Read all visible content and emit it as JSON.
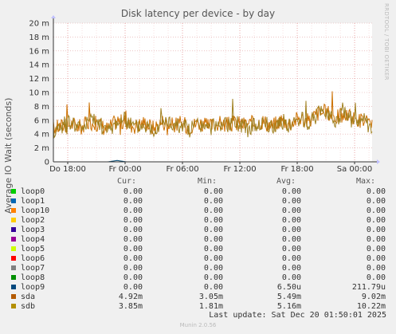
{
  "chart_data": {
    "type": "line",
    "title": "Disk latency per device - by day",
    "ylabel": "Average IO Wait (seconds)",
    "ylim": [
      0,
      0.02
    ],
    "y_ticks": [
      {
        "value": 0,
        "label": "0"
      },
      {
        "value": 0.002,
        "label": "2 m"
      },
      {
        "value": 0.004,
        "label": "4 m"
      },
      {
        "value": 0.006,
        "label": "6 m"
      },
      {
        "value": 0.008,
        "label": "8 m"
      },
      {
        "value": 0.01,
        "label": "10 m"
      },
      {
        "value": 0.012,
        "label": "12 m"
      },
      {
        "value": 0.014,
        "label": "14 m"
      },
      {
        "value": 0.016,
        "label": "16 m"
      },
      {
        "value": 0.018,
        "label": "18 m"
      },
      {
        "value": 0.02,
        "label": "20 m"
      }
    ],
    "x_range": [
      "Dec 19 16:30",
      "Dec 20 01:50"
    ],
    "x_ticks": [
      "Dec 19 18:00",
      "Dec 20 00:00",
      "Dec 20 06:00",
      "Dec 20 12:00",
      "Dec 20 18:00",
      "Dec 21 00:00"
    ],
    "x_tick_labels": [
      "Do 18:00",
      "Fr 00:00",
      "Fr 06:00",
      "Fr 12:00",
      "Fr 18:00",
      "Sa 00:00"
    ],
    "x_span_hours": 33.33,
    "x_start_offset_hours": -1.5,
    "grid": true,
    "series": [
      {
        "name": "sda",
        "color": "#cc7000",
        "values": [
          0.0049,
          0.0052,
          0.0055,
          0.005,
          0.0058,
          0.0054,
          0.0047,
          0.006,
          0.0055,
          0.0052,
          0.0057,
          0.0049,
          0.0058,
          0.0053,
          0.0055,
          0.0051,
          0.0057,
          0.005,
          0.0056,
          0.0053,
          0.0056,
          0.0054,
          0.0055,
          0.0059,
          0.0051,
          0.0061,
          0.0055,
          0.0064,
          0.0058,
          0.007,
          0.0072,
          0.0065,
          0.0068,
          0.0062,
          0.006,
          0.0049
        ]
      },
      {
        "name": "sdb",
        "color": "#a08020",
        "values": [
          0.0045,
          0.0053,
          0.0058,
          0.0048,
          0.0061,
          0.0056,
          0.0043,
          0.0059,
          0.006,
          0.005,
          0.0054,
          0.0047,
          0.006,
          0.0055,
          0.0053,
          0.0047,
          0.0055,
          0.0046,
          0.0058,
          0.0052,
          0.0057,
          0.005,
          0.0052,
          0.0058,
          0.0048,
          0.006,
          0.0052,
          0.0062,
          0.0055,
          0.0068,
          0.0074,
          0.006,
          0.007,
          0.0058,
          0.0063,
          0.0039
        ]
      },
      {
        "name": "loop9",
        "color": "#004a74",
        "values": [
          0,
          0,
          0,
          0,
          0,
          0,
          0,
          0.0002,
          0,
          0,
          0,
          0,
          0,
          0,
          0,
          0,
          0,
          0,
          0,
          0,
          0,
          0,
          0,
          0,
          0,
          0,
          0,
          0,
          0,
          0,
          0,
          0,
          0,
          0,
          0,
          0
        ]
      }
    ],
    "legend": {
      "headers": {
        "cur": "Cur:",
        "min": "Min:",
        "avg": "Avg:",
        "max": "Max:"
      },
      "rows": [
        {
          "name": "loop0",
          "color": "#00cc00",
          "cur": "0.00",
          "min": "0.00",
          "avg": "0.00",
          "max": "0.00"
        },
        {
          "name": "loop1",
          "color": "#0066b3",
          "cur": "0.00",
          "min": "0.00",
          "avg": "0.00",
          "max": "0.00"
        },
        {
          "name": "loop10",
          "color": "#ff8000",
          "cur": "0.00",
          "min": "0.00",
          "avg": "0.00",
          "max": "0.00"
        },
        {
          "name": "loop2",
          "color": "#ffcc00",
          "cur": "0.00",
          "min": "0.00",
          "avg": "0.00",
          "max": "0.00"
        },
        {
          "name": "loop3",
          "color": "#330099",
          "cur": "0.00",
          "min": "0.00",
          "avg": "0.00",
          "max": "0.00"
        },
        {
          "name": "loop4",
          "color": "#990099",
          "cur": "0.00",
          "min": "0.00",
          "avg": "0.00",
          "max": "0.00"
        },
        {
          "name": "loop5",
          "color": "#ccff00",
          "cur": "0.00",
          "min": "0.00",
          "avg": "0.00",
          "max": "0.00"
        },
        {
          "name": "loop6",
          "color": "#ff0000",
          "cur": "0.00",
          "min": "0.00",
          "avg": "0.00",
          "max": "0.00"
        },
        {
          "name": "loop7",
          "color": "#808080",
          "cur": "0.00",
          "min": "0.00",
          "avg": "0.00",
          "max": "0.00"
        },
        {
          "name": "loop8",
          "color": "#008f00",
          "cur": "0.00",
          "min": "0.00",
          "avg": "0.00",
          "max": "0.00"
        },
        {
          "name": "loop9",
          "color": "#00487d",
          "cur": "0.00",
          "min": "0.00",
          "avg": "6.50u",
          "max": "211.79u"
        },
        {
          "name": "sda",
          "color": "#b35a00",
          "cur": "4.92m",
          "min": "3.05m",
          "avg": "5.49m",
          "max": "9.02m"
        },
        {
          "name": "sdb",
          "color": "#b38f00",
          "cur": "3.85m",
          "min": "1.81m",
          "avg": "5.16m",
          "max": "10.22m"
        }
      ]
    }
  },
  "side_label": "RRDTOOL / TOBI OETIKER",
  "last_update": "Last update: Sat Dec 20 01:50:01 2025",
  "footer": "Munin 2.0.56",
  "colors": {
    "background": "#f0f0f0",
    "plot_bg": "#ffffff",
    "grid": "#e0a0a0",
    "axis": "#333333"
  }
}
